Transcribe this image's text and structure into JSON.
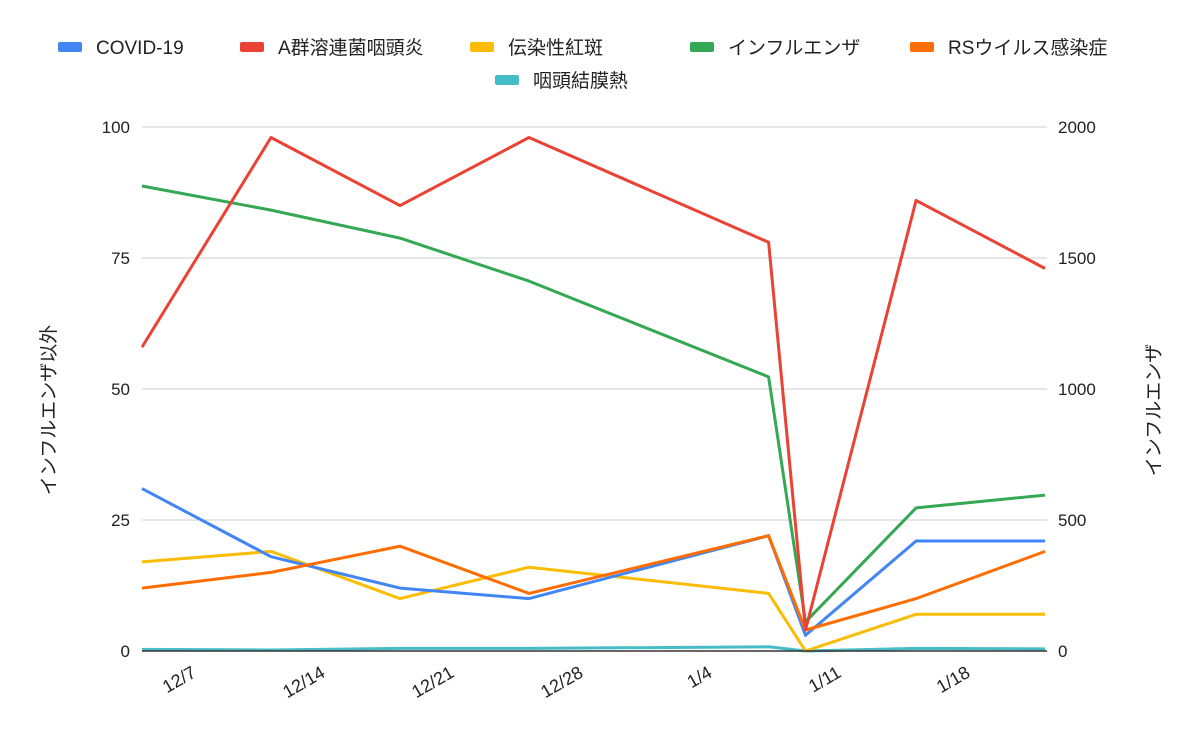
{
  "chart_data": {
    "type": "line",
    "title": "",
    "ylabel_left": "インフルエンザ以外",
    "ylabel_right": "インフルエンザ",
    "ylim_left": [
      0,
      100
    ],
    "ylim_right": [
      0,
      2000
    ],
    "yticks_left": [
      "0",
      "25",
      "50",
      "75",
      "100"
    ],
    "yticks_right": [
      "0",
      "500",
      "1000",
      "1500",
      "2000"
    ],
    "xticks": [
      "12/7",
      "12/14",
      "12/21",
      "12/28",
      "1/4",
      "1/11",
      "1/18"
    ],
    "grid": true,
    "legend_position": "top",
    "x": [
      "12/4",
      "12/11",
      "12/18",
      "12/25",
      "1/7",
      "1/9",
      "1/15",
      "1/22"
    ],
    "series": [
      {
        "name": "COVID-19",
        "color": "#4285f4",
        "axis": "left",
        "values": [
          31,
          18,
          12,
          10,
          22,
          3,
          21,
          21
        ]
      },
      {
        "name": "A群溶連菌咽頭炎",
        "color": "#ea4335",
        "axis": "left",
        "values": [
          58,
          98,
          85,
          98,
          78,
          4,
          86,
          73
        ]
      },
      {
        "name": "伝染性紅斑",
        "color": "#fbbc04",
        "axis": "left",
        "values": [
          17,
          19,
          10,
          16,
          11,
          0,
          7,
          7
        ]
      },
      {
        "name": "インフルエンザ",
        "color": "#34a853",
        "axis": "right",
        "values": [
          1775,
          1683,
          1576,
          1412,
          1046,
          111,
          546,
          595
        ]
      },
      {
        "name": "RSウイルス感染症",
        "color": "#ff6d01",
        "axis": "left",
        "values": [
          12,
          15,
          20,
          11,
          22,
          4,
          10,
          19
        ]
      },
      {
        "name": "咽頭結膜熱",
        "color": "#46bdc6",
        "axis": "left",
        "values": [
          0.3,
          0.2,
          0.5,
          0.5,
          0.8,
          0,
          0.5,
          0.4
        ]
      }
    ]
  }
}
